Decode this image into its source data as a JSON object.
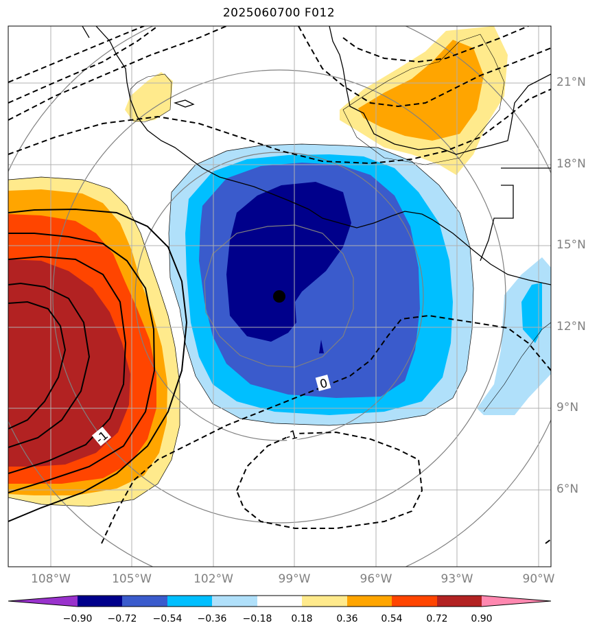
{
  "title": "2025060700 F012",
  "latitudes": [
    "21°N",
    "18°N",
    "15°N",
    "12°N",
    "9°N",
    "6°N"
  ],
  "longitudes": [
    "108°W",
    "105°W",
    "102°W",
    "99°W",
    "96°W",
    "93°W",
    "90°W"
  ],
  "contour_labels": [
    "0",
    "-1",
    "-1"
  ],
  "colorbar": {
    "ticks": [
      "−0.90",
      "−0.72",
      "−0.54",
      "−0.36",
      "−0.18",
      "0.18",
      "0.36",
      "0.54",
      "0.72",
      "0.90"
    ],
    "colors": [
      "#9932CC",
      "#00008B",
      "#3A5BCC",
      "#00BFFF",
      "#B0E0FA",
      "#FFFFFF",
      "#FFEA8C",
      "#FFA500",
      "#FF4500",
      "#B22222",
      "#FF88B0"
    ]
  },
  "colors": {
    "neg_strong": "#00008B",
    "neg_mid": "#3A5BCC",
    "neg_light": "#00BFFF",
    "neg_faint": "#B0E0FA",
    "pos_faint": "#FFEA8C",
    "pos_light": "#FFA500",
    "pos_mid": "#FF4500",
    "pos_strong": "#B22222"
  }
}
